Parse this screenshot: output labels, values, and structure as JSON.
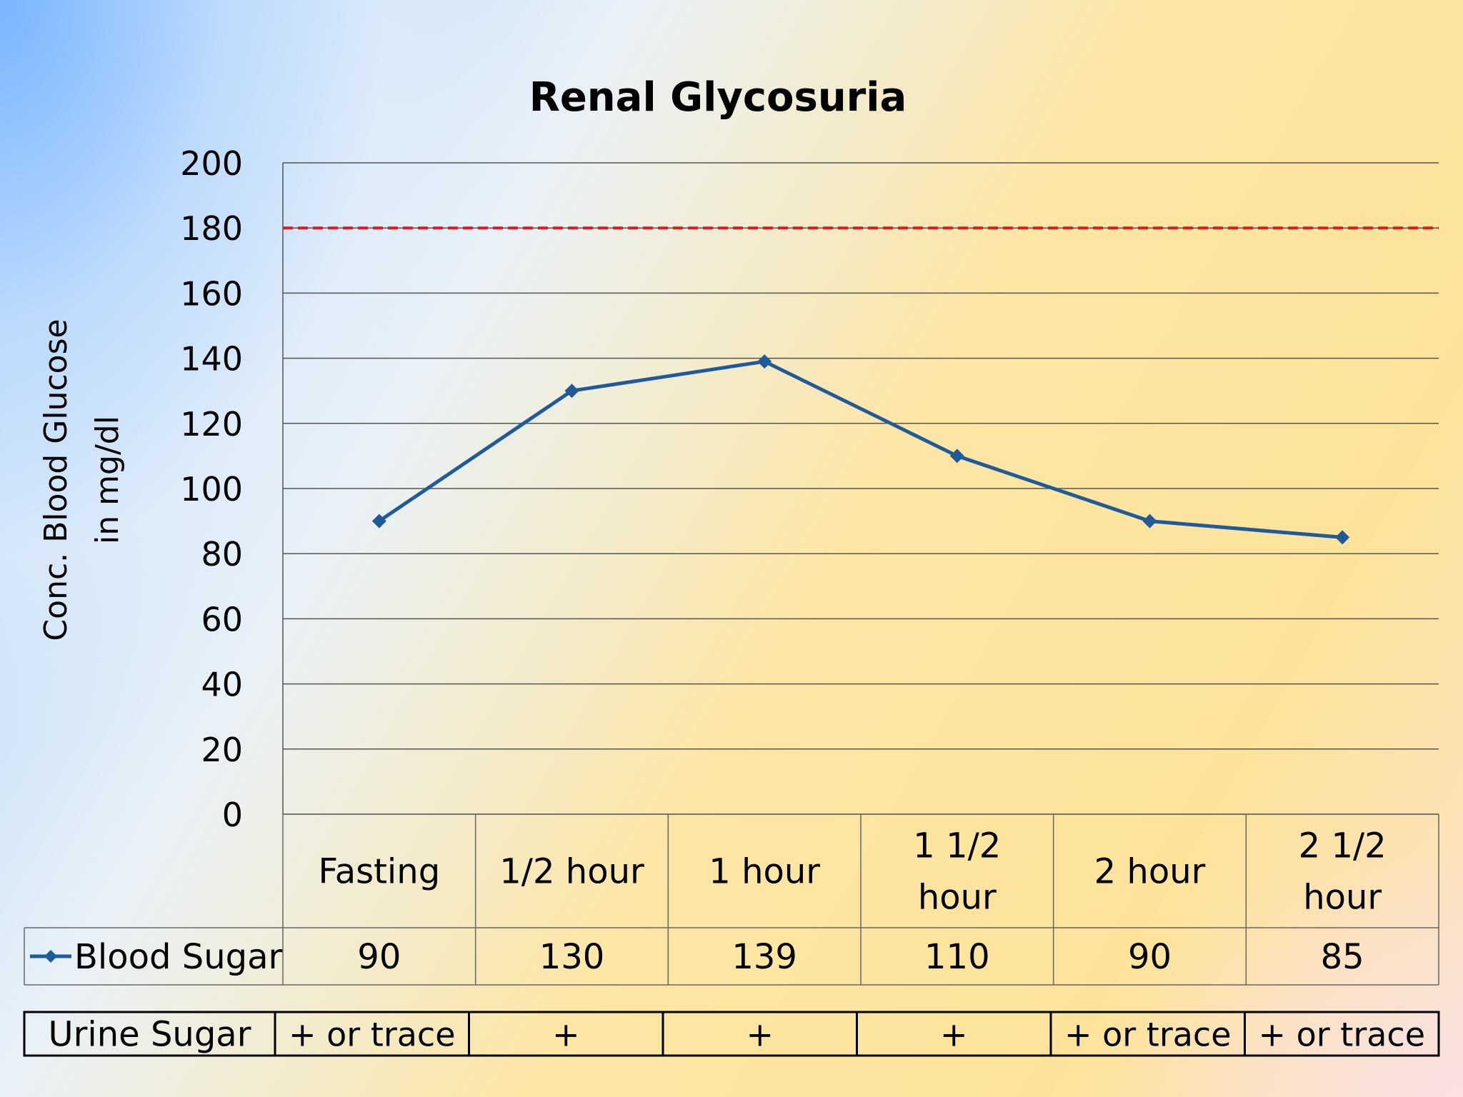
{
  "chart_data": {
    "type": "line",
    "title": "Renal Glycosuria",
    "ylabel_line1": "Conc. Blood Glucose",
    "ylabel_line2": "in mg/dl",
    "categories": [
      "Fasting",
      "1/2 hour",
      "1 hour",
      "1 1/2 hour",
      "2 hour",
      "2 1/2 hour"
    ],
    "series": [
      {
        "name": "Blood Sugar",
        "values": [
          90,
          130,
          139,
          110,
          90,
          85
        ],
        "color": "#1f5a9a"
      }
    ],
    "ylim": [
      0,
      200
    ],
    "yticks": [
      "0",
      "20",
      "40",
      "60",
      "80",
      "100",
      "120",
      "140",
      "160",
      "180",
      "200"
    ],
    "threshold": {
      "value": 180,
      "color": "#e8151b",
      "style": "dashed"
    },
    "grid": true,
    "urine_row": {
      "label": "Urine Sugar",
      "values": [
        "+ or trace",
        "+",
        "+",
        "+",
        "+ or trace",
        "+ or trace"
      ]
    }
  }
}
